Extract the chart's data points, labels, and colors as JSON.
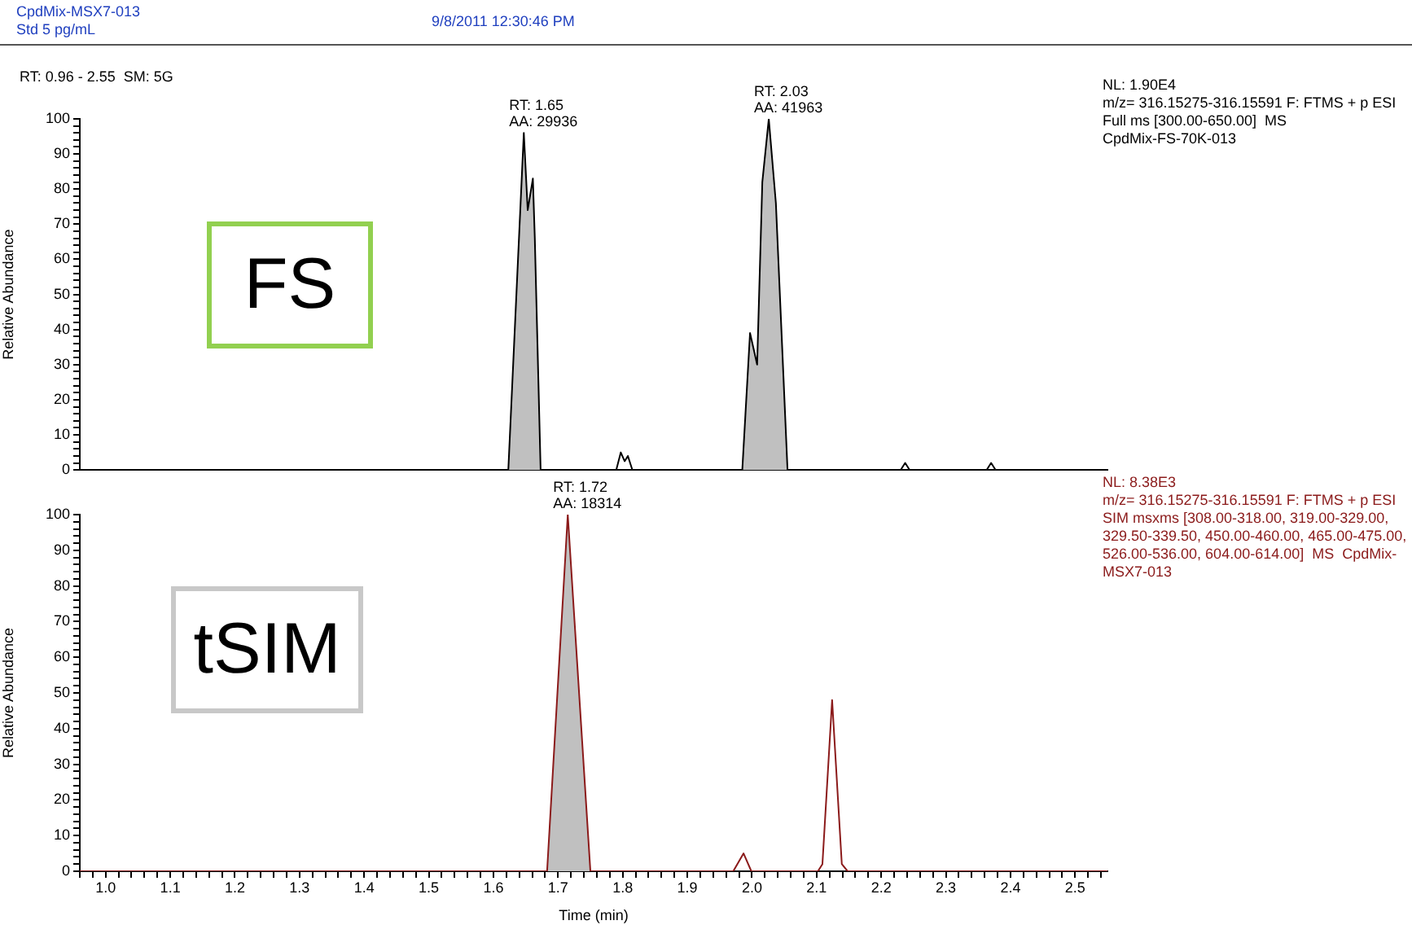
{
  "chart_data": [
    {
      "type": "line",
      "title": "CpdMix-MSX7-013",
      "subtitle": "Std 5 pg/mL",
      "ylabel": "Relative Abundance",
      "xlim": [
        0.96,
        2.55
      ],
      "ylim": [
        0,
        100
      ],
      "yticks": [
        0,
        {
          "value": 2,
          "label": null
        },
        {
          "value": 4,
          "label": null
        },
        {
          "value": 6,
          "label": null
        },
        {
          "value": 8,
          "label": null
        },
        10,
        {
          "value": 12,
          "label": null
        },
        {
          "value": 14,
          "label": null
        },
        {
          "value": 16,
          "label": null
        },
        {
          "value": 18,
          "label": null
        },
        20,
        {
          "value": 22,
          "label": null
        },
        {
          "value": 24,
          "label": null
        },
        {
          "value": 26,
          "label": null
        },
        {
          "value": 28,
          "label": null
        },
        30,
        {
          "value": 32,
          "label": null
        },
        {
          "value": 34,
          "label": null
        },
        {
          "value": 36,
          "label": null
        },
        {
          "value": 38,
          "label": null
        },
        40,
        {
          "value": 42,
          "label": null
        },
        {
          "value": 44,
          "label": null
        },
        {
          "value": 46,
          "label": null
        },
        {
          "value": 48,
          "label": null
        },
        50,
        {
          "value": 52,
          "label": null
        },
        {
          "value": 54,
          "label": null
        },
        {
          "value": 56,
          "label": null
        },
        {
          "value": 58,
          "label": null
        },
        60,
        {
          "value": 62,
          "label": null
        },
        {
          "value": 64,
          "label": null
        },
        {
          "value": 66,
          "label": null
        },
        {
          "value": 68,
          "label": null
        },
        70,
        {
          "value": 72,
          "label": null
        },
        {
          "value": 74,
          "label": null
        },
        {
          "value": 76,
          "label": null
        },
        {
          "value": 78,
          "label": null
        },
        80,
        {
          "value": 82,
          "label": null
        },
        {
          "value": 84,
          "label": null
        },
        {
          "value": 86,
          "label": null
        },
        {
          "value": 88,
          "label": null
        },
        90,
        {
          "value": 92,
          "label": null
        },
        {
          "value": 94,
          "label": null
        },
        {
          "value": 96,
          "label": null
        },
        {
          "value": 98,
          "label": null
        },
        100
      ],
      "tick_labels": "y",
      "grid": false,
      "legend": false,
      "marker": "none",
      "series": [
        {
          "type": "area",
          "color": "#c0c0c0",
          "x": [
            1.623,
            1.647,
            1.653,
            1.661,
            1.664,
            1.673
          ],
          "values": [
            0,
            96,
            74,
            83,
            66,
            0
          ]
        },
        {
          "type": "area",
          "color": "#c0c0c0",
          "x": [
            1.985,
            1.997,
            2.008,
            2.016,
            2.026,
            2.037,
            2.055
          ],
          "values": [
            0,
            39,
            30,
            82,
            100,
            76,
            0
          ]
        },
        {
          "type": "line",
          "color": "#000000",
          "x": [
            0.96,
            1.623,
            1.647,
            1.653,
            1.661,
            1.664,
            1.673,
            1.79,
            1.797,
            1.803,
            1.808,
            1.815,
            1.985,
            1.997,
            2.008,
            2.016,
            2.026,
            2.037,
            2.055,
            2.23,
            2.237,
            2.244,
            2.363,
            2.37,
            2.377,
            2.55
          ],
          "values": [
            0,
            0,
            96,
            74,
            83,
            66,
            0,
            0,
            5,
            2.5,
            4,
            0,
            0,
            39,
            30,
            82,
            100,
            76,
            0,
            0,
            2,
            0,
            0,
            2,
            0,
            0
          ]
        }
      ],
      "annotations": [
        "9/8/2011 12:30:46 PM",
        "RT: 0.96 - 2.55  SM: 5G",
        "FS",
        "NL: 1.90E4\nm/z= 316.15275-316.15591 F: FTMS + p ESI\nFull ms [300.00-650.00]  MS\nCpdMix-FS-70K-013",
        {
          "text": "RT: 1.65\nAA: 29936",
          "x": 1.647,
          "y": 96
        },
        {
          "text": "RT: 2.03\nAA: 41963",
          "x": 2.026,
          "y": 100
        }
      ]
    },
    {
      "type": "line",
      "xlabel": "Time (min)",
      "ylabel": "Relative Abundance",
      "xlim": [
        0.96,
        2.55
      ],
      "ylim": [
        0,
        100
      ],
      "xticks": [
        {
          "value": 0.96,
          "label": null
        },
        {
          "value": 0.98,
          "label": null
        },
        {
          "value": 1,
          "label": "1.0"
        },
        {
          "value": 1.02,
          "label": null
        },
        {
          "value": 1.04,
          "label": null
        },
        {
          "value": 1.06,
          "label": null
        },
        {
          "value": 1.08,
          "label": null
        },
        1.1,
        {
          "value": 1.12,
          "label": null
        },
        {
          "value": 1.14,
          "label": null
        },
        {
          "value": 1.16,
          "label": null
        },
        {
          "value": 1.18,
          "label": null
        },
        1.2,
        {
          "value": 1.22,
          "label": null
        },
        {
          "value": 1.24,
          "label": null
        },
        {
          "value": 1.26,
          "label": null
        },
        {
          "value": 1.28,
          "label": null
        },
        1.3,
        {
          "value": 1.32,
          "label": null
        },
        {
          "value": 1.34,
          "label": null
        },
        {
          "value": 1.36,
          "label": null
        },
        {
          "value": 1.38,
          "label": null
        },
        1.4,
        {
          "value": 1.42,
          "label": null
        },
        {
          "value": 1.44,
          "label": null
        },
        {
          "value": 1.46,
          "label": null
        },
        {
          "value": 1.48,
          "label": null
        },
        1.5,
        {
          "value": 1.52,
          "label": null
        },
        {
          "value": 1.54,
          "label": null
        },
        {
          "value": 1.56,
          "label": null
        },
        {
          "value": 1.58,
          "label": null
        },
        1.6,
        {
          "value": 1.62,
          "label": null
        },
        {
          "value": 1.64,
          "label": null
        },
        {
          "value": 1.66,
          "label": null
        },
        {
          "value": 1.68,
          "label": null
        },
        1.7,
        {
          "value": 1.72,
          "label": null
        },
        {
          "value": 1.74,
          "label": null
        },
        {
          "value": 1.76,
          "label": null
        },
        {
          "value": 1.78,
          "label": null
        },
        1.8,
        {
          "value": 1.82,
          "label": null
        },
        {
          "value": 1.84,
          "label": null
        },
        {
          "value": 1.86,
          "label": null
        },
        {
          "value": 1.88,
          "label": null
        },
        1.9,
        {
          "value": 1.92,
          "label": null
        },
        {
          "value": 1.94,
          "label": null
        },
        {
          "value": 1.96,
          "label": null
        },
        {
          "value": 1.98,
          "label": null
        },
        {
          "value": 2,
          "label": "2.0"
        },
        {
          "value": 2.02,
          "label": null
        },
        {
          "value": 2.04,
          "label": null
        },
        {
          "value": 2.06,
          "label": null
        },
        {
          "value": 2.08,
          "label": null
        },
        2.1,
        {
          "value": 2.12,
          "label": null
        },
        {
          "value": 2.14,
          "label": null
        },
        {
          "value": 2.16,
          "label": null
        },
        {
          "value": 2.18,
          "label": null
        },
        2.2,
        {
          "value": 2.22,
          "label": null
        },
        {
          "value": 2.24,
          "label": null
        },
        {
          "value": 2.26,
          "label": null
        },
        {
          "value": 2.28,
          "label": null
        },
        2.3,
        {
          "value": 2.32,
          "label": null
        },
        {
          "value": 2.34,
          "label": null
        },
        {
          "value": 2.36,
          "label": null
        },
        {
          "value": 2.38,
          "label": null
        },
        2.4,
        {
          "value": 2.42,
          "label": null
        },
        {
          "value": 2.44,
          "label": null
        },
        {
          "value": 2.46,
          "label": null
        },
        {
          "value": 2.48,
          "label": null
        },
        2.5,
        {
          "value": 2.52,
          "label": null
        },
        {
          "value": 2.54,
          "label": null
        }
      ],
      "yticks": [
        0,
        {
          "value": 2,
          "label": null
        },
        {
          "value": 4,
          "label": null
        },
        {
          "value": 6,
          "label": null
        },
        {
          "value": 8,
          "label": null
        },
        10,
        {
          "value": 12,
          "label": null
        },
        {
          "value": 14,
          "label": null
        },
        {
          "value": 16,
          "label": null
        },
        {
          "value": 18,
          "label": null
        },
        20,
        {
          "value": 22,
          "label": null
        },
        {
          "value": 24,
          "label": null
        },
        {
          "value": 26,
          "label": null
        },
        {
          "value": 28,
          "label": null
        },
        30,
        {
          "value": 32,
          "label": null
        },
        {
          "value": 34,
          "label": null
        },
        {
          "value": 36,
          "label": null
        },
        {
          "value": 38,
          "label": null
        },
        40,
        {
          "value": 42,
          "label": null
        },
        {
          "value": 44,
          "label": null
        },
        {
          "value": 46,
          "label": null
        },
        {
          "value": 48,
          "label": null
        },
        50,
        {
          "value": 52,
          "label": null
        },
        {
          "value": 54,
          "label": null
        },
        {
          "value": 56,
          "label": null
        },
        {
          "value": 58,
          "label": null
        },
        60,
        {
          "value": 62,
          "label": null
        },
        {
          "value": 64,
          "label": null
        },
        {
          "value": 66,
          "label": null
        },
        {
          "value": 68,
          "label": null
        },
        70,
        {
          "value": 72,
          "label": null
        },
        {
          "value": 74,
          "label": null
        },
        {
          "value": 76,
          "label": null
        },
        {
          "value": 78,
          "label": null
        },
        80,
        {
          "value": 82,
          "label": null
        },
        {
          "value": 84,
          "label": null
        },
        {
          "value": 86,
          "label": null
        },
        {
          "value": 88,
          "label": null
        },
        90,
        {
          "value": 92,
          "label": null
        },
        {
          "value": 94,
          "label": null
        },
        {
          "value": 96,
          "label": null
        },
        {
          "value": 98,
          "label": null
        },
        100
      ],
      "grid": false,
      "legend": false,
      "marker": "none",
      "series": [
        {
          "type": "area",
          "color": "#c0c0c0",
          "x": [
            1.683,
            1.715,
            1.75
          ],
          "values": [
            0,
            100,
            0
          ]
        },
        {
          "type": "line",
          "color": "#8b1a1a",
          "x": [
            0.96,
            1.683,
            1.715,
            1.75,
            1.971,
            1.987,
            1.999,
            2.102,
            2.109,
            2.124,
            2.139,
            2.148,
            2.55
          ],
          "values": [
            0,
            0,
            100,
            0,
            0,
            5,
            0,
            0,
            2,
            48,
            2,
            0,
            0
          ]
        }
      ],
      "annotations": [
        "tSIM",
        "NL: 8.38E3\nm/z= 316.15275-316.15591 F: FTMS + p ESI\nSIM msxms [308.00-318.00, 319.00-329.00, 329.50-339.50, 450.00-460.00, 465.00-475.00, 526.00-536.00, 604.00-614.00]  MS  CpdMix-MSX7-013",
        {
          "text": "RT: 1.72\nAA: 18314",
          "x": 1.715,
          "y": 100
        }
      ]
    }
  ]
}
